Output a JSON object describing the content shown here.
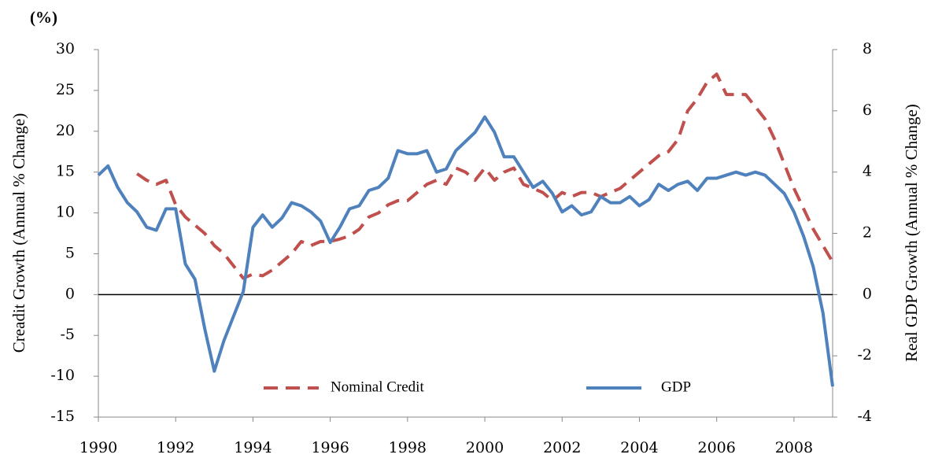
{
  "chart_data": {
    "type": "line",
    "unit_label": "(%)",
    "y_label": "Creadit Growth (Annual % Change)",
    "y2_label": "Real GDP Growth (Annual % Change)",
    "x": [
      1990,
      1990.25,
      1990.5,
      1990.75,
      1991,
      1991.25,
      1991.5,
      1991.75,
      1992,
      1992.25,
      1992.5,
      1992.75,
      1993,
      1993.25,
      1993.5,
      1993.75,
      1994,
      1994.25,
      1994.5,
      1994.75,
      1995,
      1995.25,
      1995.5,
      1995.75,
      1996,
      1996.25,
      1996.5,
      1996.75,
      1997,
      1997.25,
      1997.5,
      1997.75,
      1998,
      1998.25,
      1998.5,
      1998.75,
      1999,
      1999.25,
      1999.5,
      1999.75,
      2000,
      2000.25,
      2000.5,
      2000.75,
      2001,
      2001.25,
      2001.5,
      2001.75,
      2002,
      2002.25,
      2002.5,
      2002.75,
      2003,
      2003.25,
      2003.5,
      2003.75,
      2004,
      2004.25,
      2004.5,
      2004.75,
      2005,
      2005.25,
      2005.5,
      2005.75,
      2006,
      2006.25,
      2006.5,
      2006.75,
      2007,
      2007.25,
      2007.5,
      2007.75,
      2008,
      2008.25,
      2008.5,
      2008.75,
      2009
    ],
    "series": [
      {
        "name": "Nominal Credit",
        "color": "#c0504d",
        "dash": true,
        "values": [
          null,
          null,
          null,
          null,
          14.8,
          14,
          13.5,
          14,
          11,
          9.5,
          8.5,
          7.5,
          6,
          5,
          3.5,
          2,
          2.5,
          2.3,
          3,
          4,
          5,
          6.5,
          6,
          6.5,
          6.5,
          6.8,
          7.2,
          8,
          9.5,
          10,
          11,
          11.5,
          11.5,
          12.5,
          13.5,
          14,
          13.5,
          15.5,
          15,
          14,
          15.5,
          14,
          15,
          15.5,
          13.5,
          13,
          12.5,
          11.5,
          12.5,
          12,
          12.5,
          12.5,
          12,
          12.5,
          13,
          14,
          15,
          16,
          17,
          17.5,
          19,
          22.5,
          24,
          26,
          27,
          24.5,
          24.5,
          24.5,
          23,
          21.5,
          19,
          16,
          13,
          10.5,
          8,
          6,
          4
        ]
      },
      {
        "name": "GDP",
        "color": "#4f81bd",
        "axis": "y2",
        "values": [
          3.9,
          4.2,
          3.5,
          3.0,
          2.7,
          2.2,
          2.1,
          2.8,
          2.8,
          1.0,
          0.5,
          -1.1,
          -2.5,
          -1.5,
          -0.7,
          0.1,
          2.2,
          2.6,
          2.2,
          2.5,
          3.0,
          2.9,
          2.7,
          2.4,
          1.7,
          2.2,
          2.8,
          2.9,
          3.4,
          3.5,
          3.8,
          4.7,
          4.6,
          4.6,
          4.7,
          4.0,
          4.1,
          4.7,
          5.0,
          5.3,
          5.8,
          5.3,
          4.5,
          4.5,
          4.0,
          3.5,
          3.7,
          3.3,
          2.7,
          2.9,
          2.6,
          2.7,
          3.2,
          3.0,
          3.0,
          3.2,
          2.9,
          3.1,
          3.6,
          3.4,
          3.6,
          3.7,
          3.4,
          3.8,
          3.8,
          3.9,
          4.0,
          3.9,
          4.0,
          3.9,
          3.6,
          3.3,
          2.7,
          1.9,
          0.9,
          -0.6,
          -3.0
        ]
      }
    ],
    "xlim": [
      1990,
      2009
    ],
    "xticks": [
      1990,
      1992,
      1994,
      1996,
      1998,
      2000,
      2002,
      2004,
      2006,
      2008
    ],
    "ylim": [
      -15,
      30
    ],
    "yticks": [
      -15,
      -10,
      -5,
      0,
      5,
      10,
      15,
      20,
      25,
      30
    ],
    "y2lim": [
      -4,
      8
    ],
    "y2ticks": [
      -4,
      -2,
      0,
      2,
      4,
      6,
      8
    ],
    "legend": "bottom"
  }
}
